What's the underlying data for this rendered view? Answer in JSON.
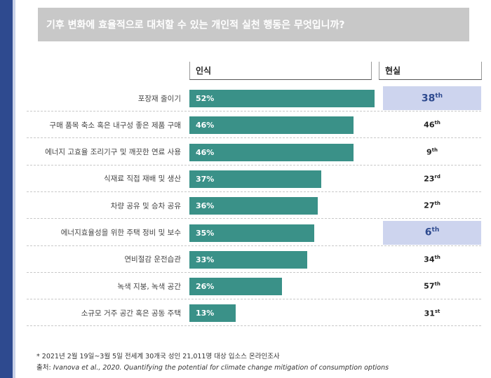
{
  "title": "기후 변화에 효율적으로 대처할 수 있는 개인적 실천 행동은 무엇입니까?",
  "columns": {
    "perception": "인식",
    "reality": "현실"
  },
  "colors": {
    "bar": "#3a9188",
    "highlight": "#cdd4ee",
    "accent": "#2e4a8f"
  },
  "chart_data": {
    "type": "bar",
    "orientation": "horizontal",
    "title": "기후 변화에 효율적으로 대처할 수 있는 개인적 실천 행동은 무엇입니까?",
    "categories": [
      "포장재 줄이기",
      "구매 품목 축소 혹은 내구성 좋은 제품 구매",
      "에너지 고효율 조리기구 및 깨끗한 연료 사용",
      "식재료 직접 재배 및 생산",
      "차량 공유 및 승차 공유",
      "에너지효율성을 위한 주택 정비 및 보수",
      "연비절감 운전습관",
      "녹색 지붕, 녹색 공간",
      "소규모 거주 공간 혹은 공동 주택"
    ],
    "series": [
      {
        "name": "인식",
        "values": [
          52,
          46,
          46,
          37,
          36,
          35,
          33,
          26,
          13
        ]
      }
    ],
    "value_labels": [
      "52%",
      "46%",
      "46%",
      "37%",
      "36%",
      "35%",
      "33%",
      "26%",
      "13%"
    ],
    "ranks": [
      {
        "num": "38",
        "suffix": "th",
        "highlight": true
      },
      {
        "num": "46",
        "suffix": "th",
        "highlight": false
      },
      {
        "num": "9",
        "suffix": "th",
        "highlight": false
      },
      {
        "num": "23",
        "suffix": "rd",
        "highlight": false
      },
      {
        "num": "27",
        "suffix": "th",
        "highlight": false
      },
      {
        "num": "6",
        "suffix": "th",
        "highlight": true
      },
      {
        "num": "34",
        "suffix": "th",
        "highlight": false
      },
      {
        "num": "57",
        "suffix": "th",
        "highlight": false
      },
      {
        "num": "31",
        "suffix": "st",
        "highlight": false
      }
    ],
    "xlim": [
      0,
      60
    ]
  },
  "footnotes": {
    "line1": "* 2021년 2월 19일~3월  5일 전세계 30개국 성인 21,011명 대상 입소스 온라인조사",
    "source_prefix": "출처: ",
    "source_italic": "Ivanova et al., 2020. Quantifying the potential for climate change mitigation of consumption options"
  }
}
